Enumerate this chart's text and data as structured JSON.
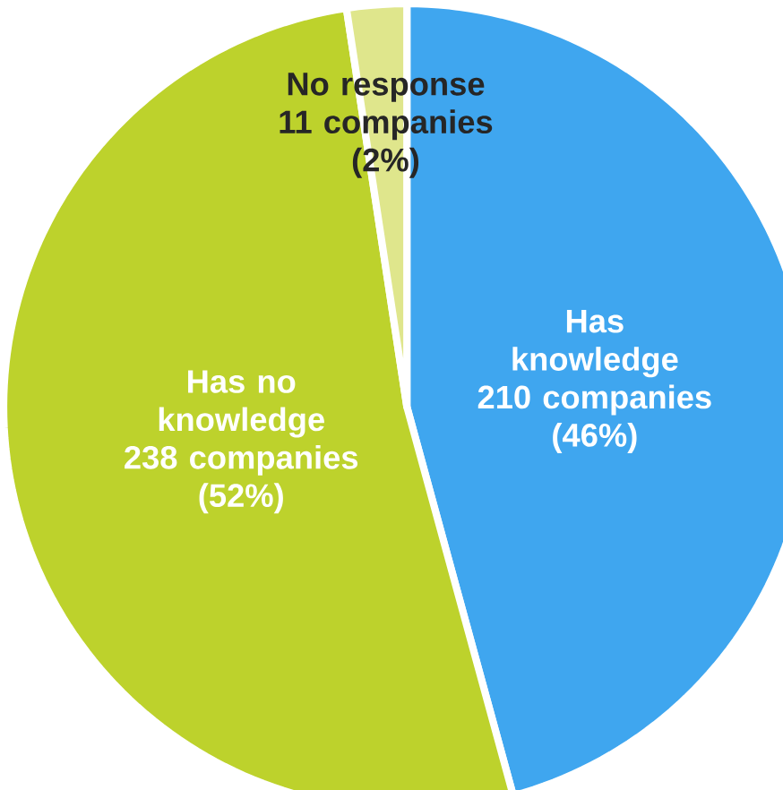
{
  "chart_data": {
    "type": "pie",
    "categories": [
      "Has knowledge",
      "Has no knowledge",
      "No response"
    ],
    "values": [
      210,
      238,
      11
    ],
    "value_labels": [
      "210 companies (46%)",
      "238 companies (52%)",
      "11 companies (2%)"
    ],
    "colors": [
      "#3fa6ef",
      "#bdd22c",
      "#dfe68c"
    ]
  }
}
